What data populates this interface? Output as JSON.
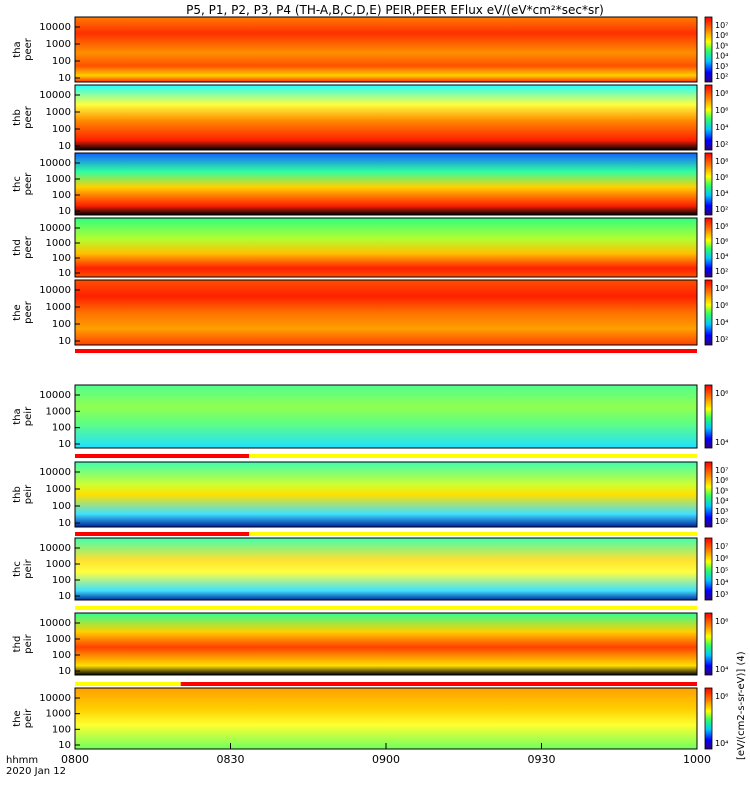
{
  "title": "P5, P1, P2, P3, P4 (TH-A,B,C,D,E) PEIR,PEER EFlux eV/(eV*cm²*sec*sr)",
  "colorbar_label": "[eV/(cm2-s-sr-eV)] (4)",
  "bar_colors": {
    "red": "#ff0000",
    "yellow": "#ffff00",
    "black": "#000000"
  },
  "chart_data": {
    "type": "heatmap",
    "x_axis": {
      "label": "hhmm",
      "date": "2020 Jan 12",
      "ticks": [
        "0800",
        "0830",
        "0900",
        "0930",
        "1000"
      ],
      "range": [
        "0800",
        "1000"
      ]
    },
    "y_ticks": [
      "10000",
      "1000",
      "100",
      "10"
    ],
    "panels": [
      {
        "label": "tha\npeer",
        "cbar": [
          "10⁷",
          "10⁶",
          "10⁵",
          "10⁴",
          "10³",
          "10²"
        ]
      },
      {
        "label": "thb\npeer",
        "cbar": [
          "10⁸",
          "10⁶",
          "10⁴",
          "10²"
        ]
      },
      {
        "label": "thc\npeer",
        "cbar": [
          "10⁸",
          "10⁶",
          "10⁴",
          "10²"
        ]
      },
      {
        "label": "thd\npeer",
        "cbar": [
          "10⁸",
          "10⁶",
          "10⁴",
          "10²"
        ]
      },
      {
        "label": "the\npeer",
        "cbar": [
          "10⁸",
          "10⁶",
          "10⁴",
          "10²"
        ]
      },
      {
        "label": "tha\npeir",
        "cbar": [
          "10⁶",
          "10⁴"
        ]
      },
      {
        "label": "thb\npeir",
        "cbar": [
          "10⁷",
          "10⁶",
          "10⁵",
          "10⁴",
          "10³",
          "10²"
        ]
      },
      {
        "label": "thc\npeir",
        "cbar": [
          "10⁷",
          "10⁶",
          "10⁵",
          "10⁴",
          "10³"
        ]
      },
      {
        "label": "thd\npeir",
        "cbar": [
          "10⁶",
          "10⁴"
        ]
      },
      {
        "label": "the\npeir",
        "cbar": [
          "10⁶",
          "10⁴"
        ]
      }
    ]
  }
}
